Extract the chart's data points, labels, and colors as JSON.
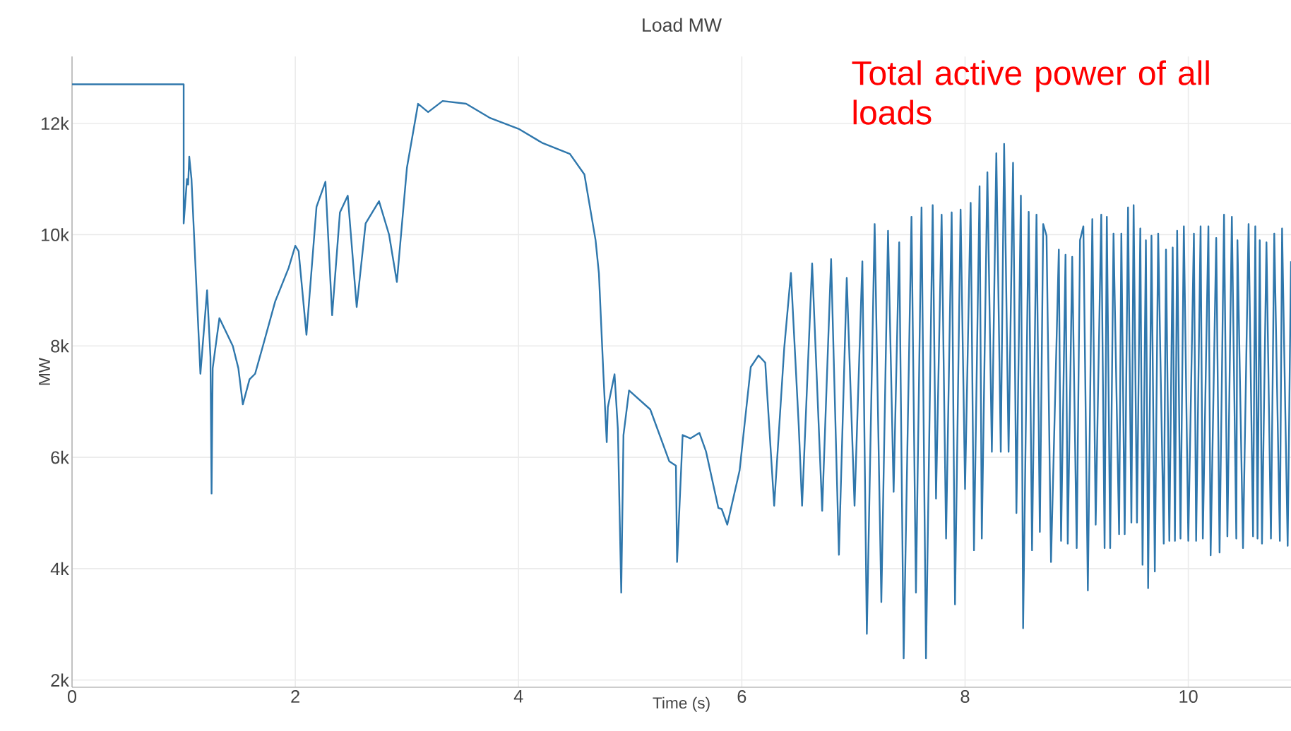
{
  "chart_data": {
    "type": "line",
    "title": "Load MW",
    "xlabel": "Time (s)",
    "ylabel": "MW",
    "annotations": [
      "Total active power of all loads"
    ],
    "xlim": [
      0,
      10.92
    ],
    "ylim": [
      1870,
      13200
    ],
    "xticks": [
      0,
      2,
      4,
      6,
      8,
      10
    ],
    "yticks": [
      {
        "value": 2000,
        "label": "2k"
      },
      {
        "value": 4000,
        "label": "4k"
      },
      {
        "value": 6000,
        "label": "6k"
      },
      {
        "value": 8000,
        "label": "8k"
      },
      {
        "value": 10000,
        "label": "10k"
      },
      {
        "value": 12000,
        "label": "12k"
      }
    ],
    "grid": true,
    "marker": "none",
    "line_style": "solid",
    "x": [
      0,
      1.0,
      1.0,
      1.03,
      1.04,
      1.05,
      1.07,
      1.15,
      1.21,
      1.24,
      1.25,
      1.26,
      1.32,
      1.44,
      1.49,
      1.53,
      1.59,
      1.64,
      1.71,
      1.82,
      1.88,
      1.94,
      2.0,
      2.03,
      2.1,
      2.19,
      2.27,
      2.33,
      2.4,
      2.47,
      2.55,
      2.63,
      2.75,
      2.84,
      2.91,
      3.0,
      3.1,
      3.19,
      3.32,
      3.53,
      3.74,
      4.0,
      4.21,
      4.46,
      4.59,
      4.69,
      4.72,
      4.76,
      4.79,
      4.8,
      4.86,
      4.89,
      4.92,
      4.94,
      4.99,
      5.18,
      5.35,
      5.41,
      5.42,
      5.47,
      5.54,
      5.62,
      5.68,
      5.79,
      5.82,
      5.87,
      5.98,
      6.08,
      6.15,
      6.21,
      6.29,
      6.38,
      6.44,
      6.51,
      6.54,
      6.63,
      6.72,
      6.8,
      6.87,
      6.94,
      7.01,
      7.08,
      7.12,
      7.19,
      7.25,
      7.31,
      7.36,
      7.41,
      7.45,
      7.52,
      7.56,
      7.61,
      7.65,
      7.71,
      7.74,
      7.79,
      7.83,
      7.88,
      7.91,
      7.96,
      8.0,
      8.05,
      8.08,
      8.13,
      8.15,
      8.2,
      8.24,
      8.28,
      8.32,
      8.35,
      8.39,
      8.43,
      8.46,
      8.5,
      8.52,
      8.57,
      8.6,
      8.64,
      8.67,
      8.7,
      8.73,
      8.77,
      8.84,
      8.86,
      8.9,
      8.92,
      8.96,
      9.0,
      9.03,
      9.06,
      9.1,
      9.14,
      9.17,
      9.22,
      9.25,
      9.27,
      9.3,
      9.33,
      9.38,
      9.4,
      9.43,
      9.46,
      9.49,
      9.51,
      9.54,
      9.57,
      9.59,
      9.62,
      9.64,
      9.67,
      9.7,
      9.73,
      9.78,
      9.8,
      9.83,
      9.86,
      9.88,
      9.9,
      9.93,
      9.96,
      10.0,
      10.05,
      10.07,
      10.11,
      10.13,
      10.18,
      10.2,
      10.25,
      10.28,
      10.32,
      10.35,
      10.39,
      10.43,
      10.44,
      10.49,
      10.54,
      10.58,
      10.6,
      10.62,
      10.64,
      10.66,
      10.7,
      10.74,
      10.77,
      10.82,
      10.84,
      10.89,
      10.92
    ],
    "series": [
      {
        "color": "#2f77ac",
        "values": [
          12700,
          12700,
          10200,
          11000,
          10900,
          11400,
          11000,
          7500,
          9000,
          7800,
          5350,
          7600,
          8500,
          8000,
          7600,
          6950,
          7400,
          7500,
          8000,
          8800,
          9100,
          9400,
          9800,
          9700,
          8200,
          10500,
          10950,
          8550,
          10400,
          10700,
          8700,
          10200,
          10600,
          10000,
          9150,
          11200,
          12350,
          12200,
          12400,
          12350,
          12100,
          11900,
          11650,
          11450,
          11080,
          9900,
          9300,
          7500,
          6270,
          6900,
          7490,
          6500,
          3570,
          6400,
          7200,
          6860,
          5930,
          5850,
          4120,
          6400,
          6340,
          6440,
          6100,
          5090,
          5070,
          4790,
          5760,
          7620,
          7830,
          7700,
          5130,
          7960,
          9310,
          6570,
          5130,
          9480,
          5040,
          9560,
          4250,
          9220,
          5130,
          9520,
          2830,
          10190,
          3400,
          10070,
          5380,
          9860,
          2390,
          10320,
          3570,
          10490,
          2390,
          10530,
          5260,
          10360,
          4540,
          10400,
          3360,
          10450,
          5430,
          10570,
          4330,
          10870,
          4540,
          11120,
          6100,
          11460,
          6100,
          11630,
          6100,
          11290,
          5000,
          10700,
          2930,
          10410,
          4330,
          10360,
          4660,
          10190,
          9980,
          4120,
          9730,
          4500,
          9640,
          4450,
          9600,
          4370,
          9900,
          10150,
          3610,
          10280,
          4790,
          10360,
          4370,
          10320,
          4370,
          10020,
          4620,
          10020,
          4620,
          10490,
          4830,
          10530,
          4830,
          10110,
          4070,
          9900,
          3650,
          9980,
          3950,
          10020,
          4450,
          9730,
          4500,
          9770,
          4500,
          10070,
          4540,
          10150,
          4500,
          10020,
          4500,
          10150,
          4540,
          10150,
          4240,
          9940,
          4290,
          10360,
          4580,
          10320,
          4540,
          9900,
          4370,
          10190,
          4580,
          10150,
          4540,
          9900,
          4450,
          9860,
          4540,
          10020,
          4500,
          10110,
          4410,
          9520
        ]
      }
    ]
  }
}
